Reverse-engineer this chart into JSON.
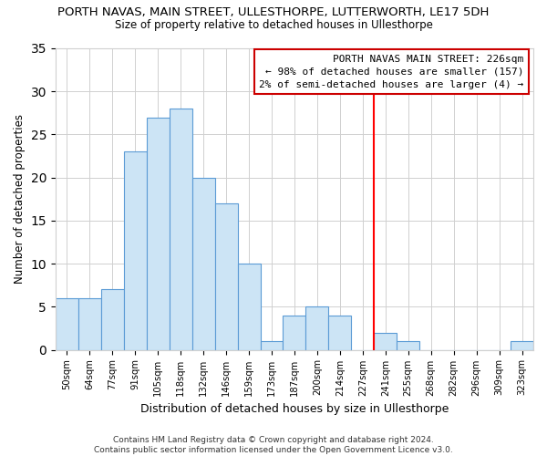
{
  "title": "PORTH NAVAS, MAIN STREET, ULLESTHORPE, LUTTERWORTH, LE17 5DH",
  "subtitle": "Size of property relative to detached houses in Ullesthorpe",
  "xlabel": "Distribution of detached houses by size in Ullesthorpe",
  "ylabel": "Number of detached properties",
  "bar_labels": [
    "50sqm",
    "64sqm",
    "77sqm",
    "91sqm",
    "105sqm",
    "118sqm",
    "132sqm",
    "146sqm",
    "159sqm",
    "173sqm",
    "187sqm",
    "200sqm",
    "214sqm",
    "227sqm",
    "241sqm",
    "255sqm",
    "268sqm",
    "282sqm",
    "296sqm",
    "309sqm",
    "323sqm"
  ],
  "bar_values": [
    6,
    6,
    7,
    23,
    27,
    28,
    20,
    17,
    10,
    1,
    4,
    5,
    4,
    0,
    2,
    1,
    0,
    0,
    0,
    0,
    1
  ],
  "bar_color": "#cce4f5",
  "bar_edge_color": "#5b9bd5",
  "grid_color": "#d0d0d0",
  "vline_x": 13.5,
  "vline_color": "red",
  "annotation_title": "PORTH NAVAS MAIN STREET: 226sqm",
  "annotation_line1": "← 98% of detached houses are smaller (157)",
  "annotation_line2": "2% of semi-detached houses are larger (4) →",
  "annotation_box_color": "#ffffff",
  "annotation_box_edge": "#cc0000",
  "ylim": [
    0,
    35
  ],
  "yticks": [
    0,
    5,
    10,
    15,
    20,
    25,
    30,
    35
  ],
  "footnote1": "Contains HM Land Registry data © Crown copyright and database right 2024.",
  "footnote2": "Contains public sector information licensed under the Open Government Licence v3.0."
}
